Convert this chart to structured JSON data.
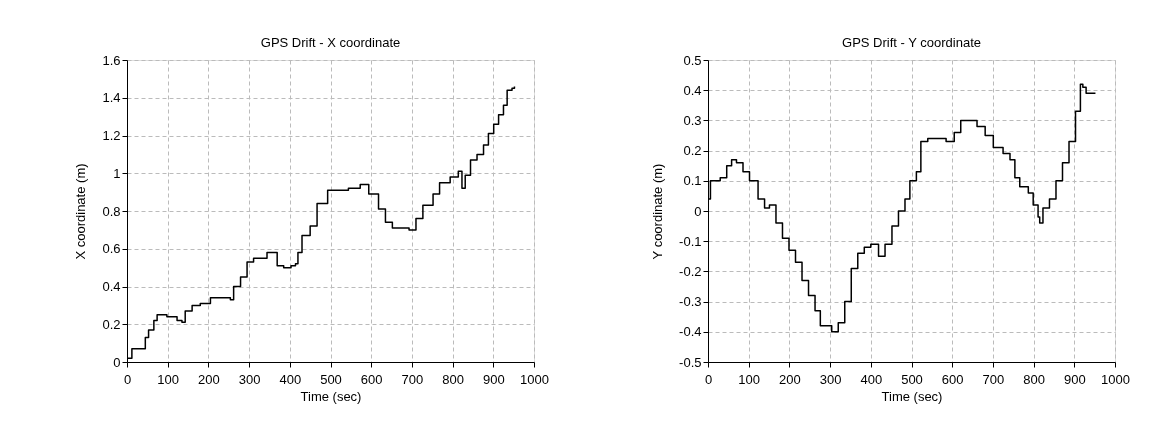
{
  "chart_data": [
    {
      "type": "step",
      "title": "GPS Drift - X coordinate",
      "xlabel": "Time (sec)",
      "ylabel": "X coordinate (m)",
      "xlim": [
        0,
        1000
      ],
      "ylim": [
        0,
        1.6
      ],
      "xticks": [
        0,
        100,
        200,
        300,
        400,
        500,
        600,
        700,
        800,
        900,
        1000
      ],
      "yticks": [
        0,
        0.2,
        0.4,
        0.6,
        0.8,
        1,
        1.2,
        1.4,
        1.6
      ],
      "grid": true,
      "line_style": "solid",
      "marker": "none",
      "series": [
        {
          "color": "#000000",
          "x": [
            0,
            12,
            41,
            45,
            53,
            66,
            74,
            98,
            123,
            135,
            143,
            160,
            180,
            205,
            246,
            254,
            262,
            279,
            295,
            311,
            344,
            369,
            385,
            403,
            414,
            420,
            430,
            450,
            467,
            493,
            544,
            573,
            594,
            618,
            635,
            652,
            693,
            710,
            727,
            752,
            768,
            794,
            814,
            823,
            831,
            844,
            860,
            876,
            888,
            901,
            913,
            925,
            934,
            946,
            952
          ],
          "values": [
            0.02,
            0.07,
            0.07,
            0.13,
            0.17,
            0.22,
            0.25,
            0.24,
            0.22,
            0.21,
            0.27,
            0.3,
            0.31,
            0.34,
            0.34,
            0.33,
            0.4,
            0.45,
            0.53,
            0.55,
            0.58,
            0.51,
            0.5,
            0.51,
            0.52,
            0.58,
            0.67,
            0.72,
            0.84,
            0.91,
            0.92,
            0.94,
            0.89,
            0.81,
            0.74,
            0.71,
            0.7,
            0.76,
            0.83,
            0.89,
            0.95,
            0.98,
            1.01,
            0.92,
            0.99,
            1.07,
            1.1,
            1.15,
            1.21,
            1.26,
            1.31,
            1.36,
            1.44,
            1.45,
            1.46
          ]
        }
      ]
    },
    {
      "type": "step",
      "title": "GPS Drift - Y coordinate",
      "xlabel": "Time (sec)",
      "ylabel": "Y coordinate (m)",
      "xlim": [
        0,
        1000
      ],
      "ylim": [
        -0.5,
        0.5
      ],
      "xticks": [
        0,
        100,
        200,
        300,
        400,
        500,
        600,
        700,
        800,
        900,
        1000
      ],
      "yticks": [
        -0.5,
        -0.4,
        -0.3,
        -0.2,
        -0.1,
        0,
        0.1,
        0.2,
        0.3,
        0.4,
        0.5
      ],
      "grid": true,
      "line_style": "solid",
      "marker": "none",
      "series": [
        {
          "color": "#000000",
          "x": [
            0,
            6,
            30,
            46,
            58,
            70,
            86,
            102,
            123,
            139,
            151,
            167,
            183,
            199,
            215,
            231,
            247,
            263,
            276,
            296,
            304,
            320,
            336,
            352,
            368,
            384,
            400,
            419,
            435,
            452,
            468,
            484,
            496,
            512,
            523,
            540,
            565,
            585,
            605,
            621,
            637,
            661,
            681,
            701,
            725,
            742,
            754,
            766,
            787,
            799,
            811,
            815,
            823,
            839,
            855,
            871,
            887,
            903,
            915,
            921,
            929,
            952
          ],
          "values": [
            0.04,
            0.1,
            0.11,
            0.15,
            0.17,
            0.16,
            0.13,
            0.1,
            0.04,
            0.01,
            0.02,
            -0.04,
            -0.09,
            -0.13,
            -0.17,
            -0.23,
            -0.28,
            -0.33,
            -0.38,
            -0.38,
            -0.4,
            -0.37,
            -0.3,
            -0.19,
            -0.14,
            -0.12,
            -0.11,
            -0.15,
            -0.11,
            -0.05,
            0,
            0.04,
            0.1,
            0.13,
            0.23,
            0.24,
            0.24,
            0.23,
            0.26,
            0.3,
            0.3,
            0.28,
            0.25,
            0.21,
            0.19,
            0.17,
            0.11,
            0.08,
            0.06,
            0.02,
            -0.02,
            -0.04,
            0.01,
            0.04,
            0.1,
            0.16,
            0.23,
            0.33,
            0.42,
            0.41,
            0.39,
            0.39
          ]
        }
      ]
    }
  ]
}
